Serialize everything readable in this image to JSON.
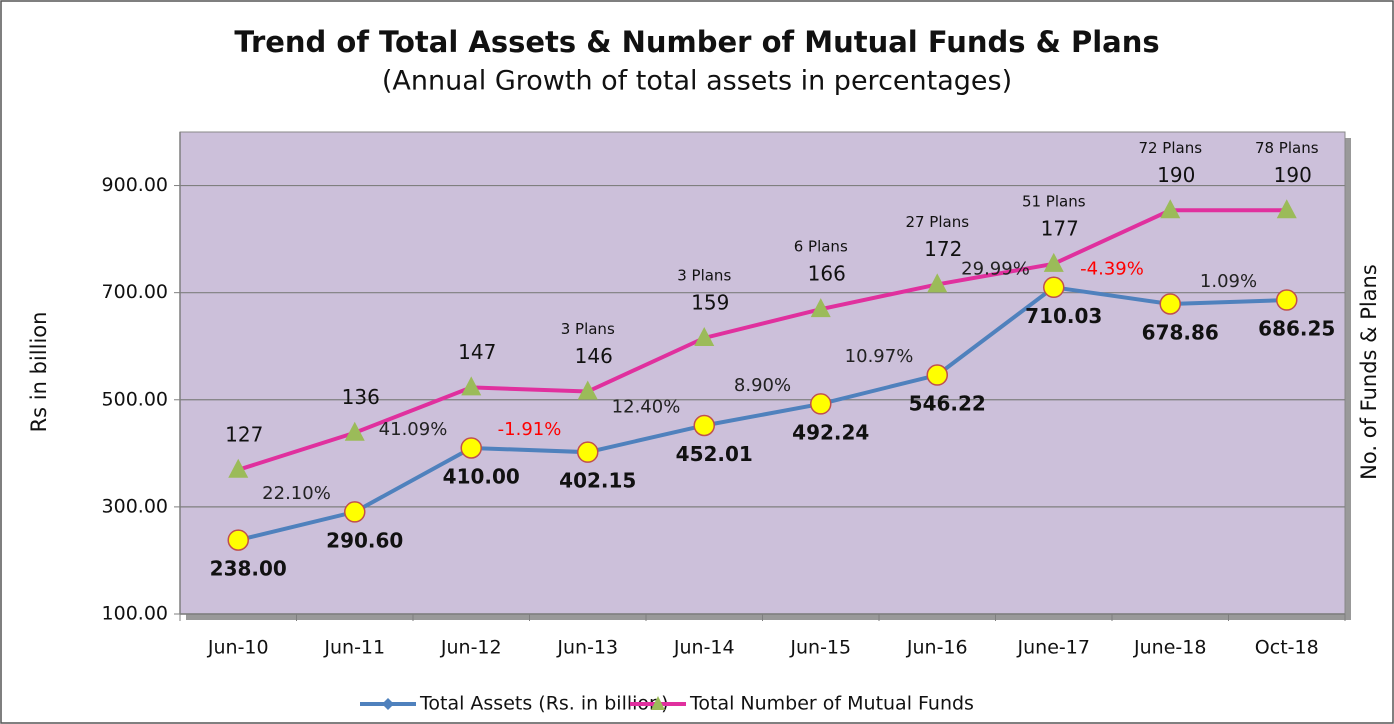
{
  "chart_data": {
    "type": "line",
    "title": "Trend of Total Assets & Number of Mutual Funds & Plans",
    "subtitle": "(Annual Growth of total assets in percentages)",
    "y_label": "Rs  in billion",
    "y2_label": "No.  of  Funds  &  Plans",
    "categories": [
      "Jun-10",
      "Jun-11",
      "Jun-12",
      "Jun-13",
      "Jun-14",
      "Jun-15",
      "Jun-16",
      "June-17",
      "June-18",
      "Oct-18"
    ],
    "series": [
      {
        "name": "Total Assets (Rs. in billion)",
        "color": "#4f81bd",
        "marker_color": "#ffff00",
        "marker_edge": "#c0504d",
        "marker": "circle",
        "values": [
          238.0,
          290.6,
          410.0,
          402.15,
          452.01,
          492.24,
          546.22,
          710.03,
          678.86,
          686.25
        ],
        "value_labels": [
          "238.00",
          "290.60",
          "410.00",
          "402.15",
          "452.01",
          "492.24",
          "546.22",
          "710.03",
          "678.86",
          "686.25"
        ]
      },
      {
        "name": "Total Number of Mutual Funds",
        "color": "#e0309e",
        "marker_color": "#9bbb59",
        "marker": "triangle",
        "axis": "y2",
        "values": [
          127,
          136,
          147,
          146,
          159,
          166,
          172,
          177,
          190,
          190
        ]
      }
    ],
    "growth_labels": [
      {
        "text": "22.10%",
        "color": "#222222"
      },
      {
        "text": "41.09%",
        "color": "#222222"
      },
      {
        "text": "-1.91%",
        "color": "#ff0000"
      },
      {
        "text": "12.40%",
        "color": "#222222"
      },
      {
        "text": "8.90%",
        "color": "#222222"
      },
      {
        "text": "10.97%",
        "color": "#222222"
      },
      {
        "text": "29.99%",
        "color": "#222222"
      },
      {
        "text": "-4.39%",
        "color": "#ff0000"
      },
      {
        "text": "1.09%",
        "color": "#222222"
      }
    ],
    "plans_labels": [
      null,
      null,
      null,
      "3 Plans",
      "3 Plans",
      "6 Plans",
      "27 Plans",
      "51 Plans",
      "72 Plans",
      "78 Plans"
    ],
    "ylim": [
      100,
      1000
    ],
    "yticks": [
      {
        "value": 100,
        "label": "100.00"
      },
      {
        "value": 300,
        "label": "300.00"
      },
      {
        "value": 500,
        "label": "500.00"
      },
      {
        "value": 700,
        "label": "700.00"
      },
      {
        "value": 900,
        "label": "900.00"
      }
    ],
    "y2lim": [
      92,
      209
    ],
    "grid": true,
    "plot_background": "#ccc0da",
    "legend": "bottom"
  }
}
